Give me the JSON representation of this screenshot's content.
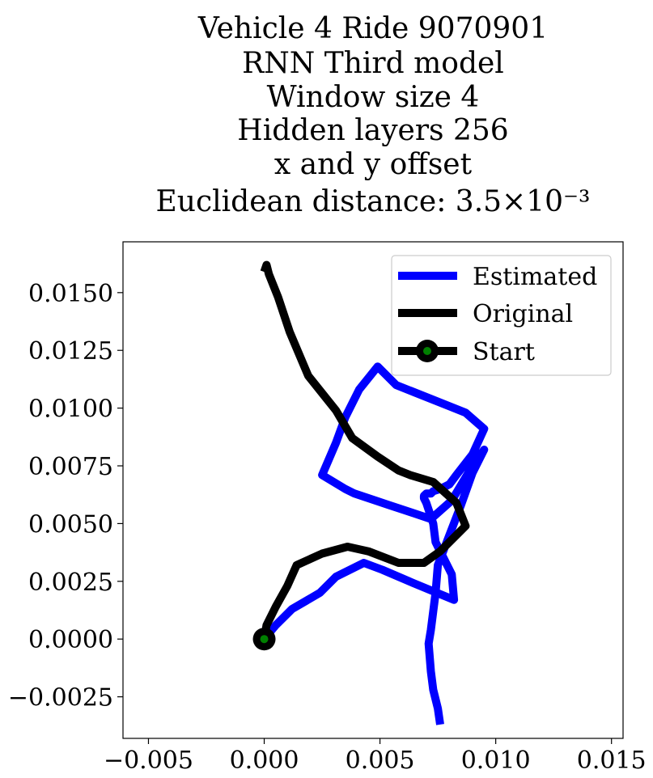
{
  "chart_data": {
    "type": "line",
    "title_lines": [
      "Vehicle 4 Ride 9070901",
      "RNN Third model",
      "Window size 4",
      "Hidden layers 256",
      "x and y offset",
      "Euclidean distance: 3.5×10⁻³"
    ],
    "xlabel": "",
    "ylabel": "",
    "xlim": [
      -0.0061,
      0.0155
    ],
    "ylim": [
      -0.0043,
      0.0172
    ],
    "xticks": [
      -0.005,
      0.0,
      0.005,
      0.01,
      0.015
    ],
    "xtick_labels": [
      "−0.005",
      "0.000",
      "0.005",
      "0.010",
      "0.015"
    ],
    "yticks": [
      -0.0025,
      0.0,
      0.0025,
      0.005,
      0.0075,
      0.01,
      0.0125,
      0.015
    ],
    "ytick_labels": [
      "−0.0025",
      "0.0000",
      "0.0025",
      "0.0050",
      "0.0075",
      "0.0100",
      "0.0125",
      "0.0150"
    ],
    "grid": false,
    "legend_position": "top-right",
    "legend": [
      {
        "label": "Estimated",
        "color": "#0000ff",
        "marker": false
      },
      {
        "label": "Original",
        "color": "#000000",
        "marker": false
      },
      {
        "label": "Start",
        "color": "#000000",
        "marker": true,
        "marker_color": "#008000"
      }
    ],
    "series": [
      {
        "name": "Estimated",
        "color": "#0000ff",
        "x": [
          0.0,
          0.0005,
          0.0012,
          0.0024,
          0.0031,
          0.0043,
          0.0051,
          0.0065,
          0.0082,
          0.0081,
          0.0074,
          0.0073,
          0.007,
          0.0069,
          0.0069,
          0.007,
          0.0072,
          0.0073,
          0.0076,
          0.008,
          0.0083,
          0.009,
          0.0095,
          0.0087,
          0.0072,
          0.0057,
          0.0049,
          0.0041,
          0.0035,
          0.0031,
          0.0025,
          0.003,
          0.0035,
          0.0039,
          0.0048,
          0.0054,
          0.0063,
          0.0072,
          0.0081,
          0.009,
          0.0095,
          0.009,
          0.0085,
          0.008,
          0.0075,
          0.0074,
          0.0073,
          0.0072,
          0.0071,
          0.0072,
          0.0073,
          0.0075,
          0.0076
        ],
        "y": [
          0.0,
          0.0006,
          0.0013,
          0.002,
          0.0027,
          0.0033,
          0.003,
          0.0024,
          0.0017,
          0.0028,
          0.0042,
          0.005,
          0.0059,
          0.0061,
          0.0062,
          0.0063,
          0.0063,
          0.0064,
          0.0065,
          0.0067,
          0.0071,
          0.008,
          0.0091,
          0.0098,
          0.0104,
          0.011,
          0.0118,
          0.0108,
          0.0096,
          0.0085,
          0.0071,
          0.0068,
          0.0065,
          0.0063,
          0.006,
          0.0058,
          0.0055,
          0.0052,
          0.006,
          0.0075,
          0.0082,
          0.0072,
          0.0058,
          0.0045,
          0.0032,
          0.002,
          0.0012,
          0.0004,
          -0.0002,
          -0.0014,
          -0.0022,
          -0.003,
          -0.0037
        ]
      },
      {
        "name": "Original",
        "color": "#000000",
        "x": [
          0.0,
          0.0001,
          0.0005,
          0.001,
          0.0014,
          0.0025,
          0.0036,
          0.0045,
          0.0058,
          0.0069,
          0.0076,
          0.0087,
          0.0083,
          0.0073,
          0.0063,
          0.0058,
          0.0049,
          0.0038,
          0.0031,
          0.0019,
          0.0011,
          0.0006,
          0.0002,
          0.0001,
          0.0
        ],
        "y": [
          0.0,
          0.0006,
          0.0014,
          0.0023,
          0.0032,
          0.0037,
          0.004,
          0.0038,
          0.0033,
          0.0033,
          0.0038,
          0.0049,
          0.0059,
          0.0068,
          0.0071,
          0.0073,
          0.0079,
          0.0087,
          0.0099,
          0.0114,
          0.0133,
          0.0148,
          0.0158,
          0.0162,
          0.0159
        ]
      }
    ]
  }
}
